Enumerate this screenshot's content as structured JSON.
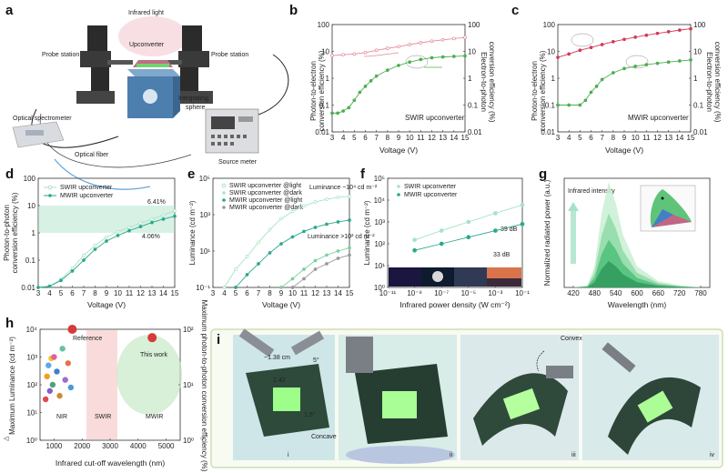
{
  "panel_labels": {
    "a": "a",
    "b": "b",
    "c": "c",
    "d": "d",
    "e": "e",
    "f": "f",
    "g": "g",
    "h": "h",
    "i": "i"
  },
  "setup": {
    "infrared_light": "Infrared light",
    "upconverter": "Upconverter",
    "probe_left": "Probe station",
    "probe_right": "Probe station",
    "integrating_sphere": "Integrating sphere",
    "optical_spectrometer": "Optical spectrometer",
    "optical_fiber": "Optical fiber",
    "source_meter": "Source meter"
  },
  "colors": {
    "pink": "#e8889a",
    "red": "#d03a55",
    "green": "#4caf50",
    "teal": "#2aa88c",
    "mint": "#a7e3c6",
    "gray": "#999999"
  },
  "chart_data": [
    {
      "panel": "b",
      "type": "line",
      "xlabel": "Voltage (V)",
      "ylabel_left": "Photon-to-electron conversion efficiency (%)",
      "ylabel_right": "Electron-to-photon conversion efficiency (%)",
      "x_ticks": [
        "3",
        "4",
        "5",
        "6",
        "7",
        "8",
        "9",
        "10",
        "11",
        "12",
        "13",
        "14",
        "15"
      ],
      "y_ticks_left": [
        "0.01",
        "0.1",
        "1",
        "10",
        "100"
      ],
      "y_ticks_right": [
        "0.01",
        "0.1",
        "1",
        "10",
        "100"
      ],
      "annotation": "SWIR upconverter",
      "series": [
        {
          "x": [
            3,
            4,
            5,
            6,
            7,
            8,
            9,
            10,
            11,
            12,
            13,
            14,
            15
          ],
          "y": [
            7,
            7.5,
            8,
            9,
            11,
            13,
            15,
            18,
            21,
            24,
            27,
            30,
            33
          ]
        },
        {
          "x": [
            3,
            3.5,
            4,
            4.5,
            5,
            5.5,
            6,
            6.5,
            7,
            8,
            9,
            10,
            11,
            12,
            13,
            14,
            15
          ],
          "y": [
            0.05,
            0.05,
            0.06,
            0.08,
            0.15,
            0.3,
            0.5,
            0.8,
            1.2,
            2,
            3,
            4,
            5,
            5.8,
            6.2,
            6.5,
            6.8
          ]
        }
      ]
    },
    {
      "panel": "c",
      "type": "line",
      "xlabel": "Voltage (V)",
      "ylabel_left": "Photon-to-electron conversion efficiency (%)",
      "ylabel_right": "Electron-to-photon conversion efficiency (%)",
      "x_ticks": [
        "3",
        "4",
        "5",
        "6",
        "7",
        "8",
        "9",
        "10",
        "11",
        "12",
        "13",
        "14",
        "15"
      ],
      "y_ticks_left": [
        "0.01",
        "0.1",
        "1",
        "10",
        "100"
      ],
      "y_ticks_right": [
        "0.01",
        "0.1",
        "1",
        "10",
        "100"
      ],
      "annotation": "MWIR upconverter",
      "series": [
        {
          "x": [
            3,
            4,
            5,
            6,
            7,
            8,
            9,
            10,
            11,
            12,
            13,
            14,
            15
          ],
          "y": [
            6,
            8,
            11,
            14,
            18,
            23,
            28,
            34,
            40,
            47,
            54,
            62,
            70
          ]
        },
        {
          "x": [
            3,
            4,
            5,
            5.5,
            6,
            6.5,
            7,
            8,
            9,
            10,
            11,
            12,
            13,
            14,
            15
          ],
          "y": [
            0.1,
            0.1,
            0.1,
            0.15,
            0.3,
            0.5,
            0.9,
            1.6,
            2.3,
            2.8,
            3.2,
            3.6,
            4,
            4.4,
            4.8
          ]
        }
      ]
    },
    {
      "panel": "d",
      "type": "line",
      "xlabel": "Voltage (V)",
      "ylabel": "Photon-to-photon conversion efficiency (%)",
      "x_ticks": [
        "3",
        "4",
        "5",
        "6",
        "7",
        "8",
        "9",
        "10",
        "11",
        "12",
        "13",
        "14",
        "15"
      ],
      "y_ticks": [
        "0.01",
        "0.1",
        "1",
        "10",
        "100"
      ],
      "annotations": [
        "6.41%",
        "4.06%"
      ],
      "series": [
        {
          "name": "SWIR upconverter",
          "x": [
            3,
            4,
            5,
            6,
            7,
            8,
            9,
            10,
            11,
            12,
            13,
            14,
            15
          ],
          "y": [
            0.01,
            0.011,
            0.02,
            0.05,
            0.15,
            0.35,
            0.7,
            1.1,
            1.6,
            2.3,
            3.2,
            4.5,
            6.41
          ]
        },
        {
          "name": "MWIR upconverter",
          "x": [
            3,
            4,
            5,
            6,
            7,
            8,
            9,
            10,
            11,
            12,
            13,
            14,
            15
          ],
          "y": [
            0.01,
            0.011,
            0.018,
            0.04,
            0.1,
            0.25,
            0.5,
            0.8,
            1.2,
            1.7,
            2.4,
            3.2,
            4.06
          ]
        }
      ]
    },
    {
      "panel": "e",
      "type": "line",
      "xlabel": "Voltage (V)",
      "ylabel": "Luminance (cd m⁻²)",
      "x_ticks": [
        "3",
        "4",
        "5",
        "6",
        "7",
        "8",
        "9",
        "10",
        "11",
        "12",
        "13",
        "14",
        "15"
      ],
      "y_ticks": [
        "10⁻¹",
        "10¹",
        "10³",
        "10⁵"
      ],
      "annotations": [
        "Luminance ~10⁴ cd m⁻²",
        "Luminance >10² cd m⁻²"
      ],
      "series": [
        {
          "name": "SWIR upconverter @light",
          "x": [
            4,
            5,
            6,
            7,
            8,
            9,
            10,
            11,
            12,
            13,
            14,
            15
          ],
          "y": [
            0.1,
            1,
            5,
            30,
            150,
            600,
            1500,
            3000,
            5000,
            7000,
            9000,
            10000
          ]
        },
        {
          "name": "SWIR upconverter @dark",
          "x": [
            9,
            10,
            11,
            12,
            13,
            14,
            15
          ],
          "y": [
            0.1,
            0.3,
            1,
            3,
            6,
            10,
            15
          ]
        },
        {
          "name": "MWIR upconverter @light",
          "x": [
            5,
            6,
            7,
            8,
            9,
            10,
            11,
            12,
            13,
            14,
            15
          ],
          "y": [
            0.1,
            0.5,
            2,
            8,
            25,
            60,
            120,
            200,
            300,
            400,
            500
          ]
        },
        {
          "name": "MWIR upconverter @dark",
          "x": [
            10,
            11,
            12,
            13,
            14,
            15
          ],
          "y": [
            0.1,
            0.3,
            1,
            2,
            4,
            6
          ]
        }
      ]
    },
    {
      "panel": "f",
      "type": "scatter",
      "xlabel": "Infrared power density (W cm⁻²)",
      "ylabel": "Luminance (cd m⁻²)",
      "x_ticks": [
        "10⁻¹¹",
        "10⁻⁹",
        "10⁻⁷",
        "10⁻⁵",
        "10⁻³",
        "10⁻¹"
      ],
      "y_ticks": [
        "10⁰",
        "10¹",
        "10²",
        "10³",
        "10⁴",
        "10⁵"
      ],
      "annotations": [
        "39 dB",
        "33 dB"
      ],
      "series": [
        {
          "name": "SWIR upconverter",
          "x": [
            1e-09,
            1e-07,
            1e-05,
            0.001,
            0.1
          ],
          "y": [
            150,
            400,
            1000,
            2500,
            6000
          ]
        },
        {
          "name": "MWIR upconverter",
          "x": [
            1e-09,
            1e-07,
            1e-05,
            0.001,
            0.1
          ],
          "y": [
            50,
            100,
            200,
            400,
            800
          ]
        }
      ]
    },
    {
      "panel": "g",
      "type": "area",
      "xlabel": "Wavelength (nm)",
      "ylabel": "Normalized radiated power (a.u.)",
      "x_ticks": [
        "420",
        "480",
        "540",
        "600",
        "660",
        "720",
        "780"
      ],
      "y_ticks": [
        "0",
        "0.2",
        "0.4",
        "0.6",
        "0.8",
        "1.0"
      ],
      "annotations": [
        "Infrared intensity"
      ],
      "series": [
        {
          "x": [
            420,
            460,
            480,
            500,
            520,
            540,
            560,
            600,
            660,
            720,
            780
          ],
          "y": [
            0,
            0.02,
            0.2,
            0.7,
            1.0,
            0.8,
            0.5,
            0.2,
            0.06,
            0.02,
            0
          ]
        }
      ]
    },
    {
      "panel": "h",
      "type": "scatter",
      "xlabel": "Infrared cut-off wavelength (nm)",
      "ylabel": "Maximum Luminance (cd m⁻²)",
      "ylabel_right": "Maximum photon-to-photon conversion efficiency (%)",
      "x_ticks": [
        "1000",
        "2000",
        "3000",
        "4000",
        "5000"
      ],
      "y_ticks": [
        "10⁰",
        "10¹",
        "10²",
        "10³",
        "10⁴"
      ],
      "y_ticks_right": [
        "10⁰",
        "10¹",
        "10²"
      ],
      "annotations": [
        "Reference",
        "This work",
        "NIR",
        "SWIR",
        "MWIR"
      ],
      "series": [
        {
          "x": [
            700,
            750,
            800,
            850,
            900,
            950,
            1000,
            1100,
            1200,
            1300,
            1400,
            1500,
            1600
          ],
          "y": [
            30,
            200,
            500,
            60,
            900,
            100,
            1000,
            300,
            40,
            2000,
            150,
            600,
            80
          ]
        },
        {
          "x": [
            1650,
            4500
          ],
          "y": [
            10000,
            5000
          ]
        }
      ]
    }
  ],
  "panel_i": {
    "measure_1": "~1.38 cm",
    "measure_2": "5°",
    "angle_1": "1.42",
    "angle_2": "1.5°",
    "concave": "Concave",
    "convex": "Convex",
    "subs": [
      "i",
      "ii",
      "iii",
      "iv"
    ]
  }
}
